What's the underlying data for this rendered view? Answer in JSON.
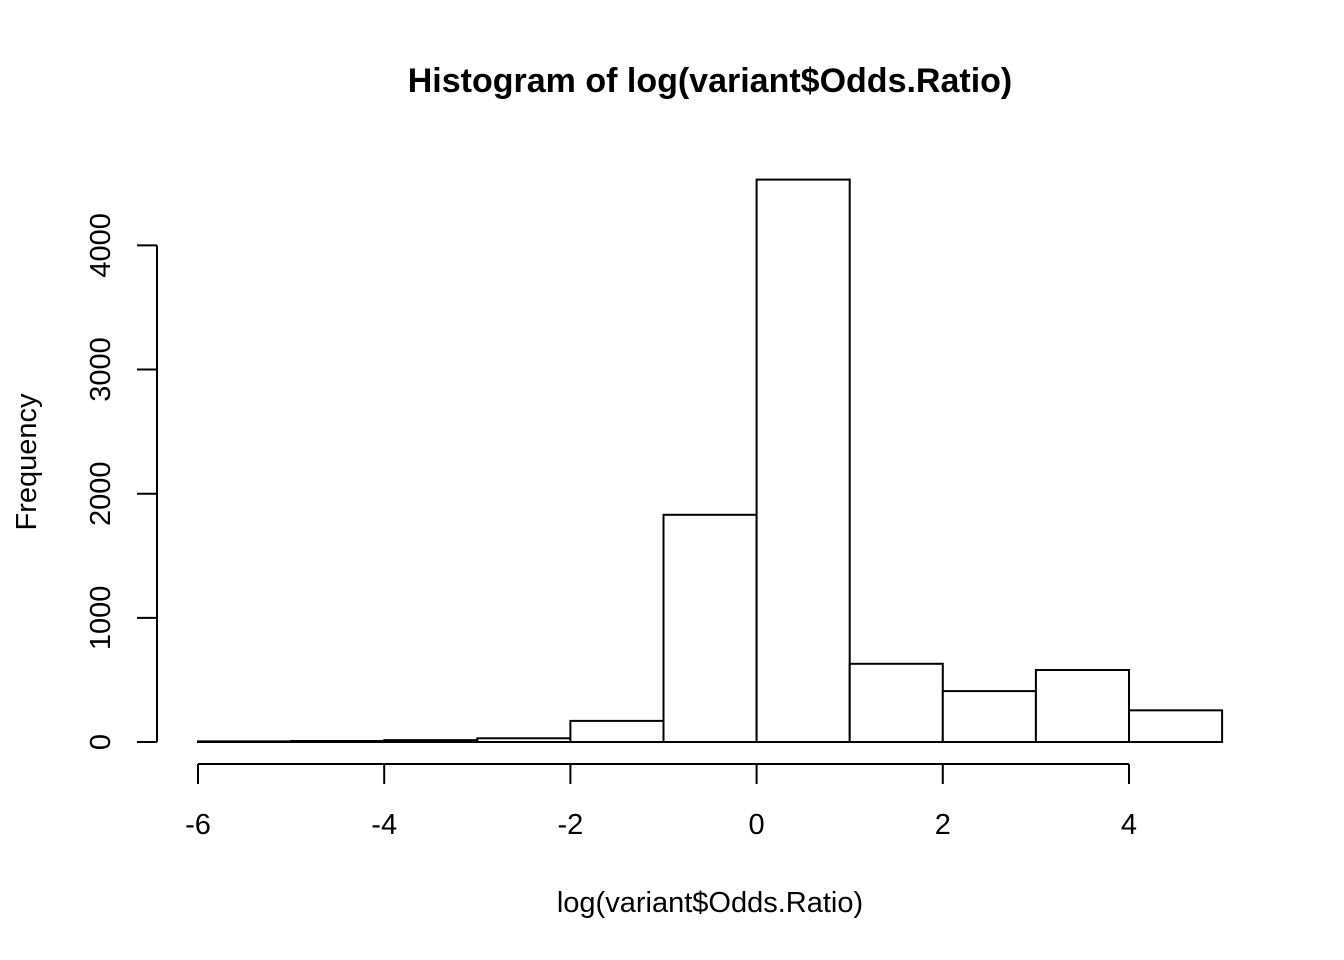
{
  "chart_data": {
    "type": "bar",
    "title": "Histogram of log(variant$Odds.Ratio)",
    "xlabel": "log(variant$Odds.Ratio)",
    "ylabel": "Frequency",
    "bins": [
      {
        "from": -6,
        "to": -5,
        "count": 5
      },
      {
        "from": -5,
        "to": -4,
        "count": 8
      },
      {
        "from": -4,
        "to": -3,
        "count": 15
      },
      {
        "from": -3,
        "to": -2,
        "count": 30
      },
      {
        "from": -2,
        "to": -1,
        "count": 170
      },
      {
        "from": -1,
        "to": 0,
        "count": 1830
      },
      {
        "from": 0,
        "to": 1,
        "count": 4530
      },
      {
        "from": 1,
        "to": 2,
        "count": 630
      },
      {
        "from": 2,
        "to": 3,
        "count": 410
      },
      {
        "from": 3,
        "to": 4,
        "count": 580
      },
      {
        "from": 4,
        "to": 5,
        "count": 255
      }
    ],
    "xticks": [
      -6,
      -4,
      -2,
      0,
      2,
      4
    ],
    "yticks": [
      0,
      1000,
      2000,
      3000,
      4000
    ],
    "xlim": [
      -6,
      5
    ],
    "ylim": [
      0,
      4530
    ],
    "grid": false,
    "legend": "none"
  }
}
